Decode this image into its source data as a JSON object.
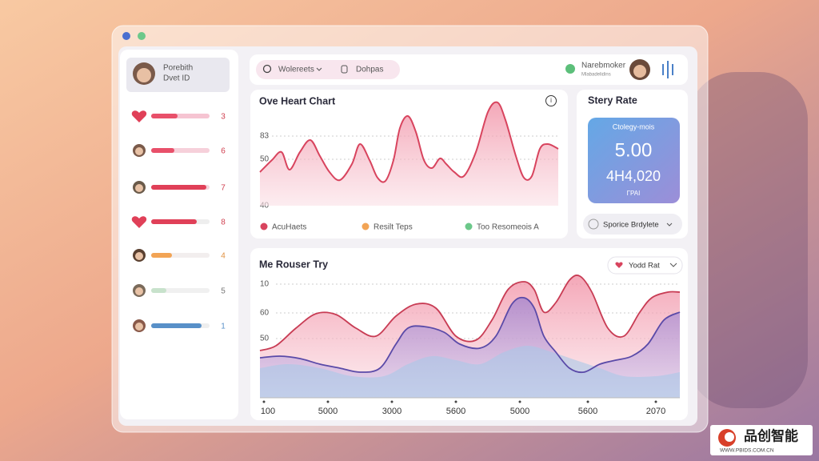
{
  "sidebar": {
    "profile": {
      "name": "Porebith",
      "id": "Dvet ID"
    },
    "rows": [
      {
        "value": 3
      },
      {
        "value": 6
      },
      {
        "value": 7
      },
      {
        "value": 8
      },
      {
        "value": 4
      },
      {
        "value": 5
      },
      {
        "value": 1
      }
    ]
  },
  "topbar": {
    "search": "Wolereets",
    "filter": "Dohpas",
    "user": {
      "name": "Narebmoker",
      "subtitle": "Mlabadelidins"
    }
  },
  "heart_chart": {
    "title": "Ove Heart Chart",
    "axis_labels": [
      "83",
      "50",
      "40"
    ],
    "legend": [
      "AcuHaets",
      "Resilt Teps",
      "Too Resomeois A"
    ]
  },
  "story_rate": {
    "title": "Stery Rate",
    "card": {
      "label": "Ctolegy-mois",
      "value": "5.00",
      "secondary": "4H4,020",
      "caption": "ΓΡΑΙ"
    },
    "button": "Sporice Brdylete"
  },
  "rouser_chart": {
    "title": "Me Rouser Try",
    "dropdown": "Yodd Rat",
    "y_labels": [
      "10",
      "60",
      "50"
    ],
    "x_labels": [
      "100",
      "5000",
      "3000",
      "5600",
      "5000",
      "5600",
      "2070"
    ]
  },
  "watermark": {
    "brand": "品创智能",
    "url": "WWW.PBIDS.COM.CN"
  }
}
